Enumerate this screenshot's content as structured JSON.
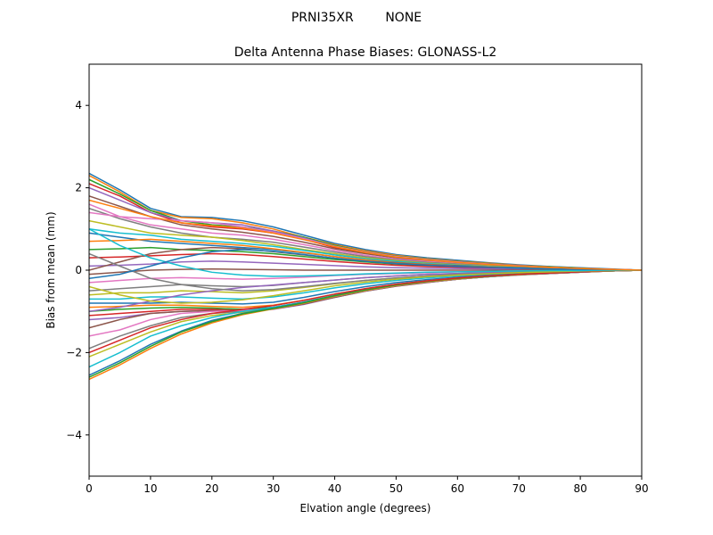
{
  "chart_data": {
    "type": "line",
    "suptitle": "PRNI35XR        NONE",
    "title": "Delta Antenna Phase Biases: GLONASS-L2",
    "xlabel": "Elvation angle (degrees)",
    "ylabel": "Bias from mean (mm)",
    "xlim": [
      0,
      90
    ],
    "ylim": [
      -5,
      5
    ],
    "xticks": [
      0,
      10,
      20,
      30,
      40,
      50,
      60,
      70,
      80,
      90
    ],
    "yticks": [
      -4,
      -2,
      0,
      2,
      4
    ],
    "ytick_labels": [
      "−4",
      "−2",
      "0",
      "2",
      "4"
    ],
    "grid": false,
    "legend": "none",
    "colors": [
      "#1f77b4",
      "#ff7f0e",
      "#2ca02c",
      "#d62728",
      "#9467bd",
      "#8c564b",
      "#e377c2",
      "#7f7f7f",
      "#bcbd22",
      "#17becf"
    ],
    "x": [
      0,
      5,
      10,
      15,
      20,
      25,
      30,
      35,
      40,
      45,
      50,
      55,
      60,
      65,
      70,
      75,
      80,
      85,
      90
    ],
    "series": [
      {
        "values": [
          2.35,
          1.95,
          1.5,
          1.3,
          1.28,
          1.2,
          1.05,
          0.85,
          0.65,
          0.5,
          0.38,
          0.3,
          0.24,
          0.18,
          0.13,
          0.09,
          0.06,
          0.03,
          0
        ]
      },
      {
        "values": [
          2.3,
          1.9,
          1.45,
          1.28,
          1.25,
          1.15,
          1.0,
          0.8,
          0.62,
          0.47,
          0.36,
          0.28,
          0.22,
          0.17,
          0.12,
          0.08,
          0.05,
          0.02,
          0
        ]
      },
      {
        "values": [
          2.2,
          1.85,
          1.45,
          1.2,
          1.1,
          1.05,
          0.95,
          0.8,
          0.6,
          0.45,
          0.34,
          0.27,
          0.21,
          0.16,
          0.11,
          0.08,
          0.05,
          0.02,
          0
        ]
      },
      {
        "values": [
          2.1,
          1.8,
          1.4,
          1.15,
          1.05,
          1.0,
          0.9,
          0.75,
          0.55,
          0.42,
          0.32,
          0.25,
          0.2,
          0.15,
          0.1,
          0.07,
          0.04,
          0.02,
          0
        ]
      },
      {
        "values": [
          2.0,
          1.7,
          1.4,
          1.2,
          1.15,
          1.1,
          0.95,
          0.78,
          0.58,
          0.44,
          0.33,
          0.26,
          0.2,
          0.15,
          0.11,
          0.07,
          0.04,
          0.02,
          0
        ]
      },
      {
        "values": [
          1.8,
          1.55,
          1.3,
          1.1,
          1.0,
          0.92,
          0.82,
          0.68,
          0.52,
          0.4,
          0.3,
          0.23,
          0.18,
          0.13,
          0.09,
          0.06,
          0.04,
          0.02,
          0
        ]
      },
      {
        "values": [
          1.6,
          1.3,
          1.1,
          1.0,
          0.9,
          0.85,
          0.75,
          0.62,
          0.48,
          0.36,
          0.27,
          0.21,
          0.16,
          0.12,
          0.08,
          0.06,
          0.03,
          0.01,
          0
        ]
      },
      {
        "values": [
          1.5,
          1.25,
          1.05,
          0.9,
          0.8,
          0.75,
          0.68,
          0.56,
          0.44,
          0.33,
          0.25,
          0.19,
          0.15,
          0.11,
          0.08,
          0.05,
          0.03,
          0.01,
          0
        ]
      },
      {
        "values": [
          1.2,
          1.05,
          0.9,
          0.85,
          0.8,
          0.72,
          0.62,
          0.5,
          0.4,
          0.3,
          0.23,
          0.17,
          0.13,
          0.1,
          0.07,
          0.05,
          0.03,
          0.01,
          0
        ]
      },
      {
        "values": [
          1.0,
          0.9,
          0.85,
          0.75,
          0.7,
          0.65,
          0.58,
          0.48,
          0.37,
          0.28,
          0.21,
          0.16,
          0.12,
          0.09,
          0.06,
          0.04,
          0.02,
          0.01,
          0
        ]
      },
      {
        "values": [
          0.9,
          0.8,
          0.7,
          0.65,
          0.6,
          0.55,
          0.5,
          0.42,
          0.33,
          0.25,
          0.19,
          0.14,
          0.11,
          0.08,
          0.06,
          0.04,
          0.02,
          0.01,
          0
        ]
      },
      {
        "values": [
          0.7,
          0.72,
          0.75,
          0.7,
          0.65,
          0.6,
          0.52,
          0.43,
          0.33,
          0.25,
          0.18,
          0.14,
          0.1,
          0.08,
          0.05,
          0.04,
          0.02,
          0.01,
          0
        ]
      },
      {
        "values": [
          0.5,
          0.52,
          0.55,
          0.5,
          0.48,
          0.45,
          0.4,
          0.33,
          0.26,
          0.2,
          0.15,
          0.11,
          0.08,
          0.06,
          0.04,
          0.03,
          0.02,
          0.01,
          0
        ]
      },
      {
        "values": [
          0.3,
          0.32,
          0.35,
          0.38,
          0.4,
          0.38,
          0.33,
          0.27,
          0.21,
          0.16,
          0.12,
          0.09,
          0.07,
          0.05,
          0.04,
          0.02,
          0.01,
          0.0,
          0
        ]
      },
      {
        "values": [
          0.1,
          0.12,
          0.15,
          0.2,
          0.22,
          0.2,
          0.17,
          0.14,
          0.11,
          0.08,
          0.06,
          0.05,
          0.04,
          0.03,
          0.02,
          0.01,
          0.01,
          0.0,
          0
        ]
      },
      {
        "values": [
          -0.1,
          -0.05,
          0.0,
          0.02,
          0.03,
          0.02,
          0.01,
          0.0,
          0.0,
          0.0,
          0.0,
          0.0,
          0.0,
          0.0,
          0.0,
          0.0,
          0.0,
          0.0,
          0
        ]
      },
      {
        "values": [
          -0.3,
          -0.25,
          -0.2,
          -0.18,
          -0.2,
          -0.22,
          -0.2,
          -0.17,
          -0.13,
          -0.1,
          -0.08,
          -0.06,
          -0.04,
          -0.03,
          -0.02,
          -0.02,
          -0.01,
          0.0,
          0
        ]
      },
      {
        "values": [
          -0.5,
          -0.45,
          -0.4,
          -0.35,
          -0.38,
          -0.4,
          -0.37,
          -0.3,
          -0.24,
          -0.18,
          -0.14,
          -0.1,
          -0.08,
          -0.06,
          -0.04,
          -0.03,
          -0.02,
          -0.01,
          0
        ]
      },
      {
        "values": [
          -0.6,
          -0.55,
          -0.55,
          -0.5,
          -0.52,
          -0.55,
          -0.5,
          -0.42,
          -0.33,
          -0.25,
          -0.19,
          -0.14,
          -0.11,
          -0.08,
          -0.06,
          -0.04,
          -0.02,
          -0.01,
          0
        ]
      },
      {
        "values": [
          -0.7,
          -0.7,
          -0.65,
          -0.65,
          -0.68,
          -0.7,
          -0.65,
          -0.55,
          -0.43,
          -0.33,
          -0.25,
          -0.19,
          -0.14,
          -0.1,
          -0.07,
          -0.05,
          -0.03,
          -0.01,
          0
        ]
      },
      {
        "values": [
          -0.8,
          -0.8,
          -0.8,
          -0.78,
          -0.8,
          -0.82,
          -0.78,
          -0.66,
          -0.52,
          -0.4,
          -0.3,
          -0.23,
          -0.17,
          -0.12,
          -0.09,
          -0.06,
          -0.03,
          -0.01,
          0
        ]
      },
      {
        "values": [
          -0.9,
          -0.88,
          -0.85,
          -0.85,
          -0.88,
          -0.9,
          -0.85,
          -0.73,
          -0.58,
          -0.45,
          -0.34,
          -0.26,
          -0.19,
          -0.14,
          -0.1,
          -0.07,
          -0.04,
          -0.02,
          0
        ]
      },
      {
        "values": [
          -1.0,
          -0.95,
          -0.92,
          -0.9,
          -0.92,
          -0.95,
          -0.9,
          -0.78,
          -0.62,
          -0.48,
          -0.36,
          -0.28,
          -0.21,
          -0.15,
          -0.11,
          -0.07,
          -0.04,
          -0.02,
          0
        ]
      },
      {
        "values": [
          -1.1,
          -1.05,
          -1.0,
          -0.95,
          -0.95,
          -0.98,
          -0.92,
          -0.8,
          -0.64,
          -0.5,
          -0.38,
          -0.29,
          -0.22,
          -0.16,
          -0.11,
          -0.08,
          -0.05,
          -0.02,
          0
        ]
      },
      {
        "values": [
          -1.2,
          -1.15,
          -1.05,
          -1.0,
          -0.98,
          -1.0,
          -0.95,
          -0.83,
          -0.66,
          -0.51,
          -0.39,
          -0.3,
          -0.22,
          -0.16,
          -0.12,
          -0.08,
          -0.05,
          -0.02,
          0
        ]
      },
      {
        "values": [
          -1.4,
          -1.2,
          -1.05,
          -1.0,
          -0.98,
          -0.98,
          -0.94,
          -0.82,
          -0.66,
          -0.51,
          -0.39,
          -0.3,
          -0.22,
          -0.16,
          -0.11,
          -0.08,
          -0.05,
          -0.02,
          0
        ]
      },
      {
        "values": [
          -1.6,
          -1.45,
          -1.2,
          -1.05,
          -1.0,
          -0.98,
          -0.92,
          -0.8,
          -0.64,
          -0.5,
          -0.38,
          -0.29,
          -0.22,
          -0.16,
          -0.11,
          -0.08,
          -0.05,
          -0.02,
          0
        ]
      },
      {
        "values": [
          -1.9,
          -1.6,
          -1.35,
          -1.15,
          -1.05,
          -1.0,
          -0.93,
          -0.8,
          -0.64,
          -0.5,
          -0.38,
          -0.29,
          -0.22,
          -0.16,
          -0.11,
          -0.08,
          -0.05,
          -0.02,
          0
        ]
      },
      {
        "values": [
          -2.1,
          -1.8,
          -1.5,
          -1.25,
          -1.1,
          -1.02,
          -0.94,
          -0.8,
          -0.63,
          -0.49,
          -0.37,
          -0.28,
          -0.21,
          -0.15,
          -0.11,
          -0.07,
          -0.04,
          -0.02,
          0
        ]
      },
      {
        "values": [
          -2.35,
          -2.0,
          -1.6,
          -1.35,
          -1.15,
          -1.0,
          -0.9,
          -0.77,
          -0.61,
          -0.47,
          -0.36,
          -0.27,
          -0.2,
          -0.15,
          -0.1,
          -0.07,
          -0.04,
          -0.02,
          0
        ]
      },
      {
        "values": [
          -2.55,
          -2.2,
          -1.8,
          -1.48,
          -1.22,
          -1.05,
          -0.92,
          -0.78,
          -0.62,
          -0.48,
          -0.36,
          -0.27,
          -0.2,
          -0.15,
          -0.1,
          -0.07,
          -0.04,
          -0.02,
          0
        ]
      },
      {
        "values": [
          -2.65,
          -2.3,
          -1.9,
          -1.55,
          -1.28,
          -1.08,
          -0.94,
          -0.8,
          -0.63,
          -0.49,
          -0.37,
          -0.28,
          -0.21,
          -0.15,
          -0.1,
          -0.07,
          -0.04,
          -0.02,
          0
        ]
      },
      {
        "values": [
          -2.6,
          -2.25,
          -1.85,
          -1.5,
          -1.25,
          -1.06,
          -0.93,
          -0.79,
          -0.62,
          -0.48,
          -0.36,
          -0.27,
          -0.2,
          -0.15,
          -0.1,
          -0.07,
          -0.04,
          -0.02,
          0
        ]
      },
      {
        "values": [
          -2.0,
          -1.7,
          -1.4,
          -1.2,
          -1.05,
          -0.95,
          -0.86,
          -0.73,
          -0.58,
          -0.45,
          -0.34,
          -0.26,
          -0.19,
          -0.14,
          -0.1,
          -0.07,
          -0.04,
          -0.02,
          0
        ]
      },
      {
        "values": [
          -1.0,
          -0.9,
          -0.75,
          -0.6,
          -0.5,
          -0.42,
          -0.36,
          -0.3,
          -0.24,
          -0.18,
          -0.14,
          -0.1,
          -0.08,
          -0.06,
          -0.04,
          -0.03,
          -0.02,
          -0.01,
          0
        ]
      },
      {
        "values": [
          0.0,
          0.2,
          0.4,
          0.5,
          0.55,
          0.52,
          0.45,
          0.37,
          0.29,
          0.22,
          0.17,
          0.13,
          0.1,
          0.07,
          0.05,
          0.03,
          0.02,
          0.01,
          0
        ]
      },
      {
        "values": [
          1.4,
          1.3,
          1.25,
          1.2,
          1.15,
          1.05,
          0.92,
          0.76,
          0.58,
          0.44,
          0.33,
          0.26,
          0.2,
          0.15,
          0.1,
          0.07,
          0.04,
          0.02,
          0
        ]
      },
      {
        "values": [
          0.4,
          0.1,
          -0.2,
          -0.35,
          -0.45,
          -0.5,
          -0.47,
          -0.4,
          -0.32,
          -0.25,
          -0.19,
          -0.14,
          -0.1,
          -0.08,
          -0.05,
          -0.04,
          -0.02,
          -0.01,
          0
        ]
      },
      {
        "values": [
          -0.4,
          -0.6,
          -0.75,
          -0.8,
          -0.78,
          -0.72,
          -0.62,
          -0.5,
          -0.38,
          -0.29,
          -0.22,
          -0.16,
          -0.12,
          -0.09,
          -0.06,
          -0.04,
          -0.02,
          -0.01,
          0
        ]
      },
      {
        "values": [
          1.0,
          0.6,
          0.3,
          0.1,
          -0.05,
          -0.12,
          -0.15,
          -0.14,
          -0.12,
          -0.09,
          -0.07,
          -0.05,
          -0.04,
          -0.03,
          -0.02,
          -0.01,
          -0.01,
          0.0,
          0
        ]
      },
      {
        "values": [
          -0.2,
          -0.1,
          0.1,
          0.3,
          0.45,
          0.5,
          0.46,
          0.38,
          0.29,
          0.22,
          0.16,
          0.12,
          0.09,
          0.07,
          0.05,
          0.03,
          0.02,
          0.01,
          0
        ]
      },
      {
        "values": [
          1.7,
          1.5,
          1.3,
          1.15,
          1.08,
          1.02,
          0.9,
          0.74,
          0.57,
          0.43,
          0.32,
          0.25,
          0.19,
          0.14,
          0.1,
          0.07,
          0.04,
          0.02,
          0
        ]
      }
    ]
  }
}
